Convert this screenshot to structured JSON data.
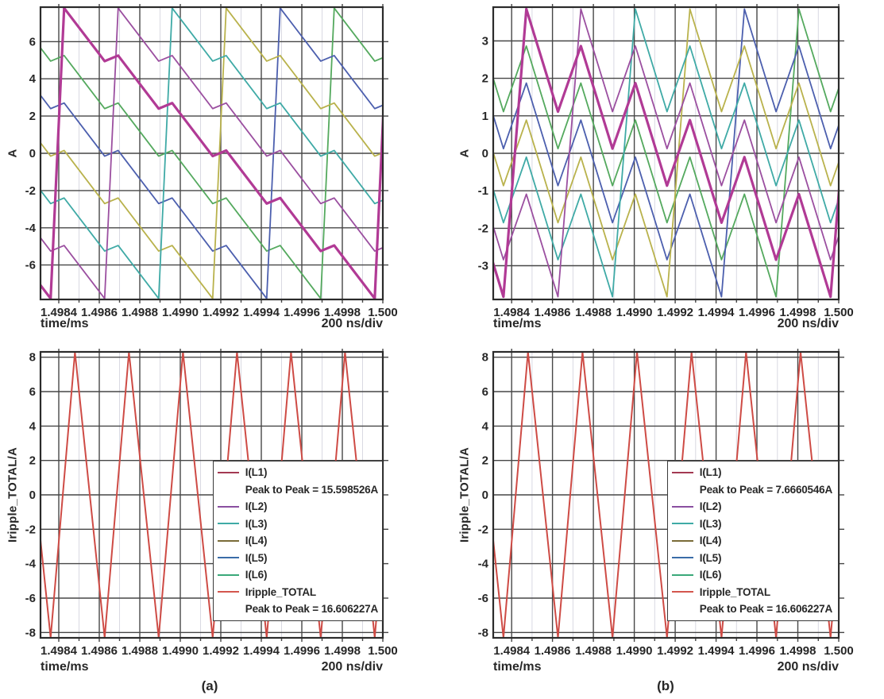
{
  "figure": {
    "captions": {
      "a": "(a)",
      "b": "(b)"
    },
    "grid_major_color": "#474747",
    "grid_minor_color": "#d9d9e2",
    "frame_color": "#2b2b2b",
    "tick_text_color": "#272727"
  },
  "chart_data": [
    {
      "id": "panel-a-phase-currents",
      "type": "line",
      "ylabel": "A",
      "xlabel": "time/ms",
      "x_right_label": "200 ns/div",
      "xlim": [
        1.49831,
        1.5
      ],
      "ylim": [
        -7.85,
        7.85
      ],
      "x_ticks": [
        {
          "v": 1.4984,
          "label": "1.4984"
        },
        {
          "v": 1.4986,
          "label": "1.4986"
        },
        {
          "v": 1.4988,
          "label": "1.4988"
        },
        {
          "v": 1.499,
          "label": "1.4990"
        },
        {
          "v": 1.4992,
          "label": "1.4992"
        },
        {
          "v": 1.4994,
          "label": "1.4994"
        },
        {
          "v": 1.4996,
          "label": "1.4996"
        },
        {
          "v": 1.4998,
          "label": "1.4998"
        },
        {
          "v": 1.5,
          "label": "1.500"
        }
      ],
      "x_minor": [
        1.4985,
        1.4987,
        1.4989,
        1.4991,
        1.4993,
        1.4995,
        1.4997,
        1.4999
      ],
      "y_ticks": [
        {
          "v": -6,
          "label": "-6"
        },
        {
          "v": -4,
          "label": "-4"
        },
        {
          "v": -2,
          "label": "-2"
        },
        {
          "v": 0,
          "label": "0"
        },
        {
          "v": 2,
          "label": "2"
        },
        {
          "v": 4,
          "label": "4"
        },
        {
          "v": 6,
          "label": "6"
        }
      ],
      "phase_peak_to_peak_A": 15.598526,
      "series": [
        {
          "name": "I(L1)",
          "color": "#b13a95",
          "width": 3.2,
          "model": {
            "type": "interleaved",
            "t0": 1.49836,
            "sub_period": 0.00026667,
            "phases": 6,
            "own": 0,
            "peak": 7.8,
            "valley": -7.8,
            "bump": 0.3,
            "drop": 2.85,
            "rise_frac": 0.25
          }
        },
        {
          "name": "I(L2)",
          "color": "#9b4fa0",
          "width": 1.8,
          "model": {
            "type": "interleaved",
            "t0": 1.49836,
            "sub_period": 0.00026667,
            "phases": 6,
            "own": 1,
            "peak": 7.8,
            "valley": -7.8,
            "bump": 0.3,
            "drop": 2.85,
            "rise_frac": 0.25
          }
        },
        {
          "name": "I(L3)",
          "color": "#3faaa6",
          "width": 1.8,
          "model": {
            "type": "interleaved",
            "t0": 1.49836,
            "sub_period": 0.00026667,
            "phases": 6,
            "own": 2,
            "peak": 7.8,
            "valley": -7.8,
            "bump": 0.3,
            "drop": 2.85,
            "rise_frac": 0.25
          }
        },
        {
          "name": "I(L4)",
          "color": "#b9b24c",
          "width": 1.8,
          "model": {
            "type": "interleaved",
            "t0": 1.49836,
            "sub_period": 0.00026667,
            "phases": 6,
            "own": 3,
            "peak": 7.8,
            "valley": -7.8,
            "bump": 0.3,
            "drop": 2.85,
            "rise_frac": 0.25
          }
        },
        {
          "name": "I(L5)",
          "color": "#4c5fae",
          "width": 1.8,
          "model": {
            "type": "interleaved",
            "t0": 1.49836,
            "sub_period": 0.00026667,
            "phases": 6,
            "own": 4,
            "peak": 7.8,
            "valley": -7.8,
            "bump": 0.3,
            "drop": 2.85,
            "rise_frac": 0.25
          }
        },
        {
          "name": "I(L6)",
          "color": "#54a95e",
          "width": 1.8,
          "model": {
            "type": "interleaved",
            "t0": 1.49836,
            "sub_period": 0.00026667,
            "phases": 6,
            "own": 5,
            "peak": 7.8,
            "valley": -7.8,
            "bump": 0.3,
            "drop": 2.85,
            "rise_frac": 0.25
          }
        }
      ]
    },
    {
      "id": "panel-b-phase-currents",
      "type": "line",
      "ylabel": "A",
      "xlabel": "time/ms",
      "x_right_label": "200 ns/div",
      "xlim": [
        1.49831,
        1.5
      ],
      "ylim": [
        -3.9,
        3.9
      ],
      "x_ticks": [
        {
          "v": 1.4984,
          "label": "1.4984"
        },
        {
          "v": 1.4986,
          "label": "1.4986"
        },
        {
          "v": 1.4988,
          "label": "1.4988"
        },
        {
          "v": 1.499,
          "label": "1.4990"
        },
        {
          "v": 1.4992,
          "label": "1.4992"
        },
        {
          "v": 1.4994,
          "label": "1.4994"
        },
        {
          "v": 1.4996,
          "label": "1.4996"
        },
        {
          "v": 1.4998,
          "label": "1.4998"
        },
        {
          "v": 1.5,
          "label": "1.500"
        }
      ],
      "x_minor": [
        1.4985,
        1.4987,
        1.4989,
        1.4991,
        1.4993,
        1.4995,
        1.4997,
        1.4999
      ],
      "y_ticks": [
        {
          "v": -3,
          "label": "-3"
        },
        {
          "v": -2,
          "label": "-2"
        },
        {
          "v": -1,
          "label": "-1"
        },
        {
          "v": 0,
          "label": "0"
        },
        {
          "v": 1,
          "label": "1"
        },
        {
          "v": 2,
          "label": "2"
        },
        {
          "v": 3,
          "label": "3"
        }
      ],
      "phase_peak_to_peak_A": 7.6660546,
      "series": [
        {
          "name": "I(L1)",
          "color": "#b13a95",
          "width": 3.2,
          "model": {
            "type": "interleaved",
            "t0": 1.49836,
            "sub_period": 0.00026667,
            "phases": 6,
            "own": 0,
            "peak": 3.85,
            "valley": -3.83,
            "bump": 1.75,
            "drop": 2.738,
            "rise_frac": 0.42
          }
        },
        {
          "name": "I(L2)",
          "color": "#9b4fa0",
          "width": 1.8,
          "model": {
            "type": "interleaved",
            "t0": 1.49836,
            "sub_period": 0.00026667,
            "phases": 6,
            "own": 1,
            "peak": 3.85,
            "valley": -3.83,
            "bump": 1.75,
            "drop": 2.738,
            "rise_frac": 0.42
          }
        },
        {
          "name": "I(L3)",
          "color": "#3faaa6",
          "width": 1.8,
          "model": {
            "type": "interleaved",
            "t0": 1.49836,
            "sub_period": 0.00026667,
            "phases": 6,
            "own": 2,
            "peak": 3.85,
            "valley": -3.83,
            "bump": 1.75,
            "drop": 2.738,
            "rise_frac": 0.42
          }
        },
        {
          "name": "I(L4)",
          "color": "#b9b24c",
          "width": 1.8,
          "model": {
            "type": "interleaved",
            "t0": 1.49836,
            "sub_period": 0.00026667,
            "phases": 6,
            "own": 3,
            "peak": 3.85,
            "valley": -3.83,
            "bump": 1.75,
            "drop": 2.738,
            "rise_frac": 0.42
          }
        },
        {
          "name": "I(L5)",
          "color": "#4c5fae",
          "width": 1.8,
          "model": {
            "type": "interleaved",
            "t0": 1.49836,
            "sub_period": 0.00026667,
            "phases": 6,
            "own": 4,
            "peak": 3.85,
            "valley": -3.83,
            "bump": 1.75,
            "drop": 2.738,
            "rise_frac": 0.42
          }
        },
        {
          "name": "I(L6)",
          "color": "#54a95e",
          "width": 1.8,
          "model": {
            "type": "interleaved",
            "t0": 1.49836,
            "sub_period": 0.00026667,
            "phases": 6,
            "own": 5,
            "peak": 3.85,
            "valley": -3.83,
            "bump": 1.75,
            "drop": 2.738,
            "rise_frac": 0.42
          }
        }
      ]
    },
    {
      "id": "panel-a-total-ripple",
      "type": "line",
      "ylabel": "Iripple_TOTAL/A",
      "xlabel": "time/ms",
      "x_right_label": "200 ns/div",
      "xlim": [
        1.49831,
        1.5
      ],
      "ylim": [
        -8.31,
        8.31
      ],
      "x_ticks": [
        {
          "v": 1.4984,
          "label": "1.4984"
        },
        {
          "v": 1.4986,
          "label": "1.4986"
        },
        {
          "v": 1.4988,
          "label": "1.4988"
        },
        {
          "v": 1.499,
          "label": "1.4990"
        },
        {
          "v": 1.4992,
          "label": "1.4992"
        },
        {
          "v": 1.4994,
          "label": "1.4994"
        },
        {
          "v": 1.4996,
          "label": "1.4996"
        },
        {
          "v": 1.4998,
          "label": "1.4998"
        },
        {
          "v": 1.5,
          "label": "1.500"
        }
      ],
      "x_minor": [
        1.4985,
        1.4987,
        1.4989,
        1.4991,
        1.4993,
        1.4995,
        1.4997,
        1.4999
      ],
      "y_ticks": [
        {
          "v": -8,
          "label": "-8"
        },
        {
          "v": -6,
          "label": "-6"
        },
        {
          "v": -4,
          "label": "-4"
        },
        {
          "v": -2,
          "label": "-2"
        },
        {
          "v": 0,
          "label": "0"
        },
        {
          "v": 2,
          "label": "2"
        },
        {
          "v": 4,
          "label": "4"
        },
        {
          "v": 6,
          "label": "6"
        },
        {
          "v": 8,
          "label": "8"
        }
      ],
      "series": [
        {
          "name": "Iripple_TOTAL",
          "color": "#ce4b45",
          "width": 2,
          "model": {
            "type": "triangle",
            "t0": 1.49836,
            "period": 0.00026667,
            "min": -8.3,
            "max": 8.3,
            "rise_frac": 0.45
          }
        }
      ],
      "legend": {
        "x": 1.49916,
        "y_top": 2.0,
        "y_bottom": -7.33,
        "items": [
          {
            "swatch": "#a33a52",
            "label": "I(L1)"
          },
          {
            "label": "Peak to Peak = 15.598526A",
            "indent": true
          },
          {
            "swatch": "#8a4fa0",
            "label": "I(L2)"
          },
          {
            "swatch": "#3faaa6",
            "label": "I(L3)"
          },
          {
            "swatch": "#7a6b38",
            "label": "I(L4)"
          },
          {
            "swatch": "#3a6ca8",
            "label": "I(L5)"
          },
          {
            "swatch": "#3aa979",
            "label": "I(L6)"
          },
          {
            "swatch": "#d4564e",
            "label": "Iripple_TOTAL"
          },
          {
            "label": "Peak to Peak = 16.606227A",
            "indent": true
          }
        ]
      }
    },
    {
      "id": "panel-b-total-ripple",
      "type": "line",
      "ylabel": "Iripple_TOTAL/A",
      "xlabel": "time/ms",
      "x_right_label": "200 ns/div",
      "xlim": [
        1.49831,
        1.5
      ],
      "ylim": [
        -8.31,
        8.31
      ],
      "x_ticks": [
        {
          "v": 1.4984,
          "label": "1.4984"
        },
        {
          "v": 1.4986,
          "label": "1.4986"
        },
        {
          "v": 1.4988,
          "label": "1.4988"
        },
        {
          "v": 1.499,
          "label": "1.4990"
        },
        {
          "v": 1.4992,
          "label": "1.4992"
        },
        {
          "v": 1.4994,
          "label": "1.4994"
        },
        {
          "v": 1.4996,
          "label": "1.4996"
        },
        {
          "v": 1.4998,
          "label": "1.4998"
        },
        {
          "v": 1.5,
          "label": "1.500"
        }
      ],
      "x_minor": [
        1.4985,
        1.4987,
        1.4989,
        1.4991,
        1.4993,
        1.4995,
        1.4997,
        1.4999
      ],
      "y_ticks": [
        {
          "v": -8,
          "label": "-8"
        },
        {
          "v": -6,
          "label": "-6"
        },
        {
          "v": -4,
          "label": "-4"
        },
        {
          "v": -2,
          "label": "-2"
        },
        {
          "v": 0,
          "label": "0"
        },
        {
          "v": 2,
          "label": "2"
        },
        {
          "v": 4,
          "label": "4"
        },
        {
          "v": 6,
          "label": "6"
        },
        {
          "v": 8,
          "label": "8"
        }
      ],
      "series": [
        {
          "name": "Iripple_TOTAL",
          "color": "#ce4b45",
          "width": 2,
          "model": {
            "type": "triangle",
            "t0": 1.49836,
            "period": 0.00026667,
            "min": -8.3,
            "max": 8.3,
            "rise_frac": 0.45
          }
        }
      ],
      "legend": {
        "x": 1.49916,
        "y_top": 2.0,
        "y_bottom": -7.33,
        "items": [
          {
            "swatch": "#a33a52",
            "label": "I(L1)"
          },
          {
            "label": "Peak to Peak = 7.6660546A",
            "indent": true
          },
          {
            "swatch": "#8a4fa0",
            "label": "I(L2)"
          },
          {
            "swatch": "#3faaa6",
            "label": "I(L3)"
          },
          {
            "swatch": "#7a6b38",
            "label": "I(L4)"
          },
          {
            "swatch": "#3a6ca8",
            "label": "I(L5)"
          },
          {
            "swatch": "#3aa979",
            "label": "I(L6)"
          },
          {
            "swatch": "#d4564e",
            "label": "Iripple_TOTAL"
          },
          {
            "label": "Peak to Peak = 16.606227A",
            "indent": true
          }
        ]
      }
    }
  ]
}
